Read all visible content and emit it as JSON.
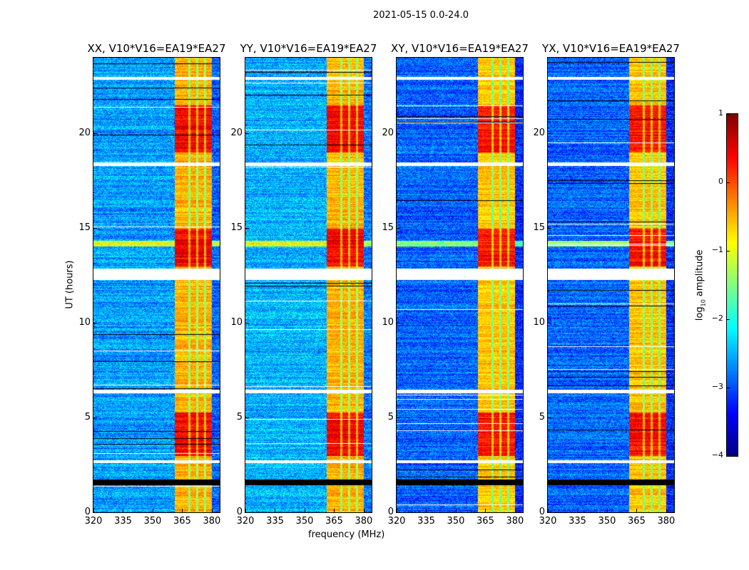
{
  "chart_data": {
    "type": "heatmap",
    "title": "2021-05-15 0.0-24.0",
    "xlabel": "frequency (MHz)",
    "ylabel": "UT (hours)",
    "xlim": [
      320,
      384
    ],
    "ylim": [
      0,
      24
    ],
    "xticks": [
      "320",
      "335",
      "350",
      "365",
      "380"
    ],
    "xtick_values": [
      320,
      335,
      350,
      365,
      380
    ],
    "yticks": [
      "0",
      "5",
      "10",
      "15",
      "20"
    ],
    "ytick_values": [
      0,
      5,
      10,
      15,
      20
    ],
    "panels": [
      {
        "title": "XX, V10*V16=EA19*EA27",
        "base_level": -2.6,
        "band_level": -0.5
      },
      {
        "title": "YY, V10*V16=EA19*EA27",
        "base_level": -2.5,
        "band_level": -0.5
      },
      {
        "title": "XY, V10*V16=EA19*EA27",
        "base_level": -2.9,
        "band_level": -0.6
      },
      {
        "title": "YX, V10*V16=EA19*EA27",
        "base_level": -2.9,
        "band_level": -0.6
      }
    ],
    "bright_band_mhz": [
      361,
      380
    ],
    "band_gaps_mhz": [
      368.5,
      372.5,
      376.5
    ],
    "strong_hours": [
      [
        3,
        5.3
      ],
      [
        13,
        15
      ],
      [
        19,
        21.5
      ]
    ],
    "flagged_hours": [
      [
        1.45,
        1.75
      ],
      [
        2.6,
        2.75
      ],
      [
        6.3,
        6.5
      ],
      [
        12.3,
        12.9
      ],
      [
        18.3,
        18.5
      ],
      [
        22.85,
        23.0
      ]
    ],
    "colorbar": {
      "label": "log10 amplitude",
      "label_main": "log",
      "label_sub": "10",
      "label_rest": " amplitude",
      "range": [
        -4,
        1
      ],
      "ticks": [
        "1",
        "0",
        "−1",
        "−2",
        "−3",
        "−4"
      ],
      "tick_values": [
        1,
        0,
        -1,
        -2,
        -3,
        -4
      ],
      "colormap": "jet"
    }
  }
}
